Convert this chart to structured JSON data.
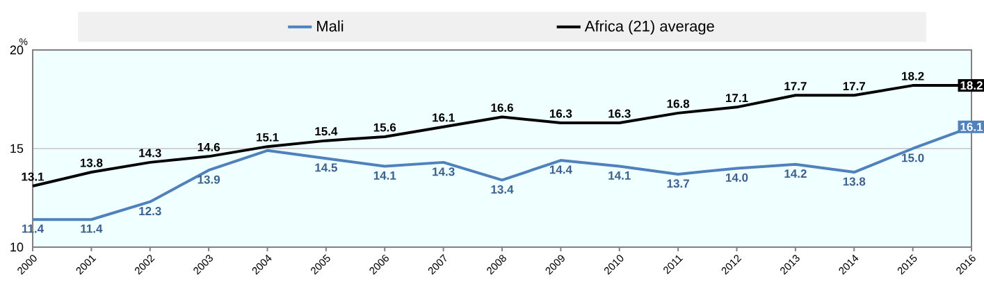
{
  "chart_data": {
    "type": "line",
    "ylabel": "%",
    "x": [
      2000,
      2001,
      2002,
      2003,
      2004,
      2005,
      2006,
      2007,
      2008,
      2009,
      2010,
      2011,
      2012,
      2013,
      2014,
      2015,
      2016
    ],
    "xlim": [
      2000,
      2016
    ],
    "xticks": [
      2000,
      2001,
      2002,
      2003,
      2004,
      2005,
      2006,
      2007,
      2008,
      2009,
      2010,
      2011,
      2012,
      2013,
      2014,
      2015,
      2016
    ],
    "ylim": [
      10,
      20
    ],
    "yticks": [
      10,
      15,
      20
    ],
    "grid": "y",
    "legend": "top",
    "line_style": "solid",
    "series": [
      {
        "name": "Mali",
        "color": "#4f81bd",
        "values": [
          11.4,
          11.4,
          12.3,
          13.9,
          14.9,
          14.5,
          14.1,
          14.3,
          13.4,
          14.4,
          14.1,
          13.7,
          14.0,
          14.2,
          13.8,
          15.0,
          16.1
        ],
        "value_labels": [
          "11.4",
          "11.4",
          "12.3",
          "13.9",
          null,
          "14.5",
          "14.1",
          "14.3",
          "13.4",
          "14.4",
          "14.1",
          "13.7",
          "14.0",
          "14.2",
          "13.8",
          "15.0",
          "16.1"
        ]
      },
      {
        "name": "Africa (21) average",
        "color": "#000000",
        "values": [
          13.1,
          13.8,
          14.3,
          14.6,
          15.1,
          15.4,
          15.6,
          16.1,
          16.6,
          16.3,
          16.3,
          16.8,
          17.1,
          17.7,
          17.7,
          18.2,
          18.2
        ],
        "value_labels": [
          "13.1",
          "13.8",
          "14.3",
          "14.6",
          "15.1",
          "15.4",
          "15.6",
          "16.1",
          "16.6",
          "16.3",
          "16.3",
          "16.8",
          "17.1",
          "17.7",
          "17.7",
          "18.2",
          "18.2"
        ]
      }
    ]
  }
}
